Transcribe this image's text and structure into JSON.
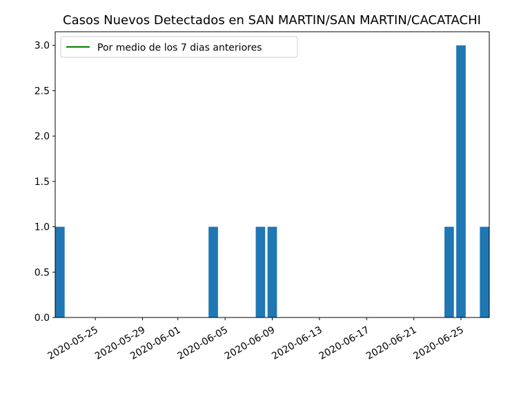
{
  "chart_data": {
    "type": "bar",
    "title": "Casos Nuevos Detectados en SAN MARTIN/SAN MARTIN/CACATACHI",
    "xlabel": "",
    "ylabel": "",
    "x_type": "date",
    "xlim": [
      "2020-05-22",
      "2020-06-27"
    ],
    "ylim": [
      0,
      3.15
    ],
    "x_ticks": [
      "2020-05-25",
      "2020-05-29",
      "2020-06-01",
      "2020-06-05",
      "2020-06-09",
      "2020-06-13",
      "2020-06-17",
      "2020-06-21",
      "2020-06-25"
    ],
    "y_ticks": [
      "0.0",
      "0.5",
      "1.0",
      "1.5",
      "2.0",
      "2.5",
      "3.0"
    ],
    "bars": [
      {
        "date": "2020-05-22",
        "value": 1
      },
      {
        "date": "2020-06-04",
        "value": 1
      },
      {
        "date": "2020-06-08",
        "value": 1
      },
      {
        "date": "2020-06-09",
        "value": 1
      },
      {
        "date": "2020-06-24",
        "value": 1
      },
      {
        "date": "2020-06-25",
        "value": 3
      },
      {
        "date": "2020-06-27",
        "value": 1
      }
    ],
    "series": [
      {
        "name": "Por medio de los 7 dias anteriores",
        "type": "line",
        "color": "#008000",
        "values": []
      }
    ],
    "bar_color": "#1f77b4",
    "legend": {
      "position": "upper-left",
      "entries": [
        "Por medio de los 7 dias anteriores"
      ]
    },
    "grid": false
  }
}
